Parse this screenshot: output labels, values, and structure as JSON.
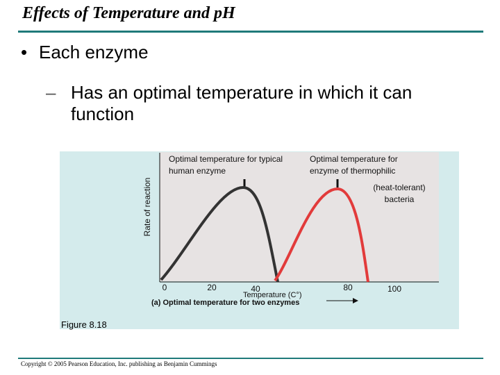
{
  "slide": {
    "title": "Effects of Temperature and pH",
    "bullet_1": "Each enzyme",
    "bullet_2": "Has an optimal temperature in which it can function",
    "dash": "–",
    "bullet_symbol": "•"
  },
  "figure": {
    "annotation_human": "Optimal temperature for typical human enzyme",
    "annotation_thermo": "Optimal temperature for enzyme of thermophilic",
    "annotation_thermo_2": "(heat-tolerant) bacteria",
    "y_axis_label": "Rate of reaction",
    "x_axis_label": "Temperature (C°)",
    "caption": "(a) Optimal temperature for two enzymes",
    "figure_label": "Figure 8.18",
    "x_ticks": [
      "0",
      "20",
      "40",
      "80",
      "100"
    ],
    "colors": {
      "human_curve": "#333333",
      "thermo_curve": "#e23b3b",
      "panel_bg": "#d4ebec",
      "plot_bg": "#e7e3e3"
    }
  },
  "chart_data": {
    "type": "line",
    "xlabel": "Temperature (C°)",
    "ylabel": "Rate of reaction",
    "x_ticks": [
      0,
      20,
      40,
      80,
      100
    ],
    "xlim": [
      0,
      110
    ],
    "series": [
      {
        "optimum_temperature": 37,
        "points": [
          [
            0,
            5
          ],
          [
            15,
            40
          ],
          [
            30,
            82
          ],
          [
            37,
            100
          ],
          [
            45,
            60
          ],
          [
            50,
            0
          ]
        ]
      },
      {
        "optimum_temperature": 77,
        "points": [
          [
            40,
            5
          ],
          [
            55,
            45
          ],
          [
            70,
            90
          ],
          [
            77,
            100
          ],
          [
            82,
            60
          ],
          [
            85,
            0
          ]
        ]
      }
    ]
  },
  "footer": {
    "copyright": "Copyright © 2005 Pearson Education, Inc. publishing as Benjamin Cummings"
  }
}
